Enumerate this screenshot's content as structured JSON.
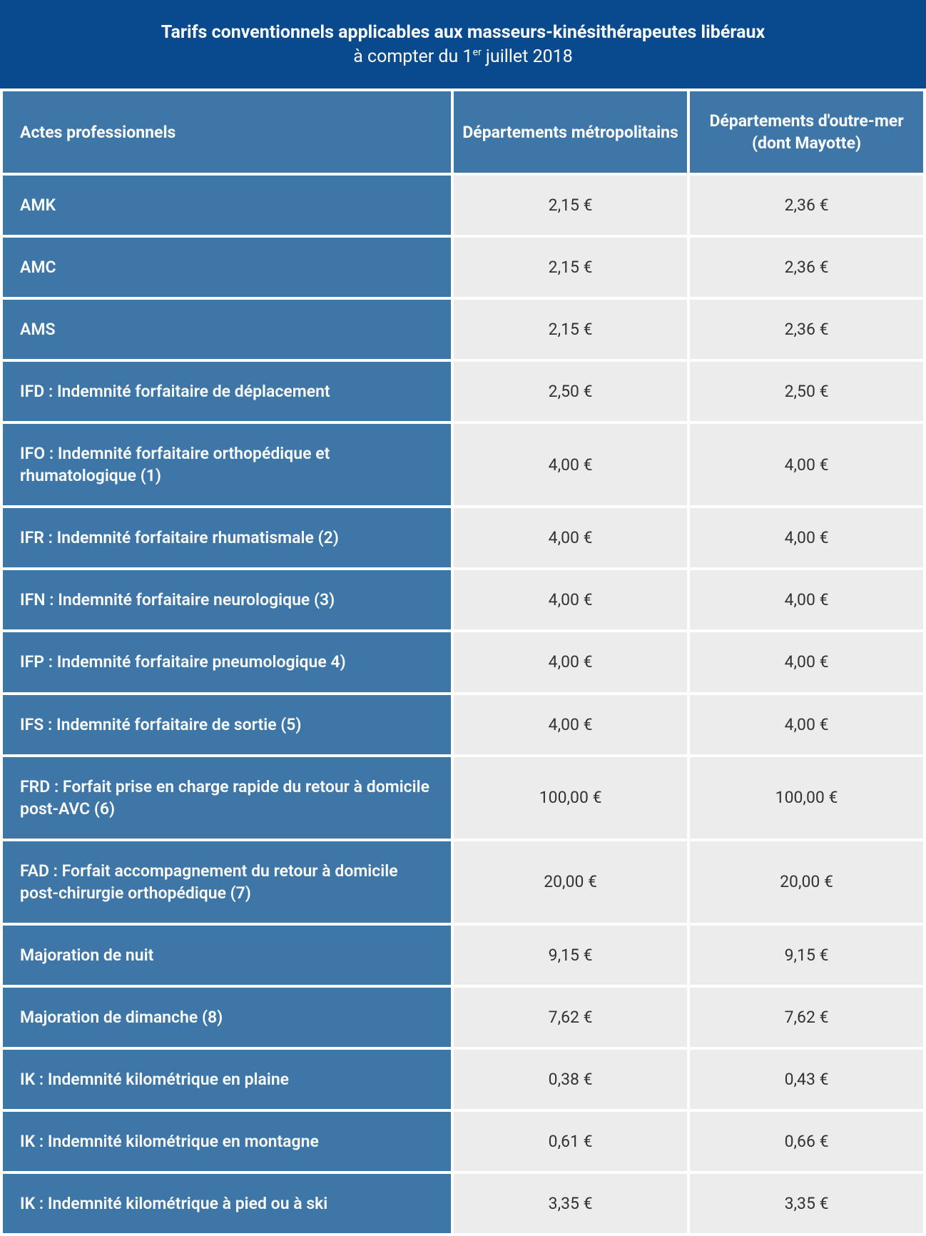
{
  "colors": {
    "title_bg": "#084a8d",
    "header_bg": "#3f76a8",
    "label_bg": "#3f76a8",
    "val_bg": "#ececec",
    "val_text": "#333333"
  },
  "title": {
    "main": "Tarifs conventionnels applicables aux masseurs-kinésithérapeutes libéraux",
    "sub_prefix": "à compter du 1",
    "sub_super": "er",
    "sub_suffix": " juillet 2018"
  },
  "columns": [
    "Actes professionnels",
    "Départements métropolitains",
    "Départements d'outre-mer (dont Mayotte)"
  ],
  "rows": [
    {
      "label": "AMK",
      "metro": "2,15 €",
      "dom": "2,36 €"
    },
    {
      "label": "AMC",
      "metro": "2,15 €",
      "dom": "2,36 €"
    },
    {
      "label": "AMS",
      "metro": "2,15 €",
      "dom": "2,36 €"
    },
    {
      "label": "IFD : Indemnité forfaitaire de déplacement",
      "metro": "2,50 €",
      "dom": "2,50 €"
    },
    {
      "label": "IFO : Indemnité forfaitaire orthopédique et rhumatologique (1)",
      "metro": "4,00 €",
      "dom": "4,00 €"
    },
    {
      "label": "IFR : Indemnité forfaitaire rhumatismale (2)",
      "metro": "4,00 €",
      "dom": "4,00 €"
    },
    {
      "label": "IFN : Indemnité forfaitaire neurologique (3)",
      "metro": "4,00 €",
      "dom": "4,00 €"
    },
    {
      "label": "IFP : Indemnité forfaitaire pneumologique 4)",
      "metro": "4,00 €",
      "dom": "4,00 €"
    },
    {
      "label": "IFS : Indemnité forfaitaire de sortie (5)",
      "metro": "4,00 €",
      "dom": "4,00 €"
    },
    {
      "label": "FRD : Forfait prise en charge rapide du retour à domicile post-AVC (6)",
      "metro": "100,00 €",
      "dom": "100,00 €"
    },
    {
      "label": "FAD : Forfait accompagnement du retour à domicile post-chirurgie orthopédique (7)",
      "metro": "20,00 €",
      "dom": "20,00 €"
    },
    {
      "label": "Majoration de nuit",
      "metro": "9,15 €",
      "dom": "9,15 €"
    },
    {
      "label": "Majoration de dimanche (8)",
      "metro": "7,62 €",
      "dom": "7,62 €"
    },
    {
      "label": "IK : Indemnité kilométrique en plaine",
      "metro": "0,38 €",
      "dom": "0,43 €"
    },
    {
      "label": "IK : Indemnité kilométrique en montagne",
      "metro": "0,61 €",
      "dom": "0,66 €"
    },
    {
      "label": "IK : Indemnité kilométrique à pied ou à ski",
      "metro": "3,35 €",
      "dom": "3,35 €"
    }
  ]
}
